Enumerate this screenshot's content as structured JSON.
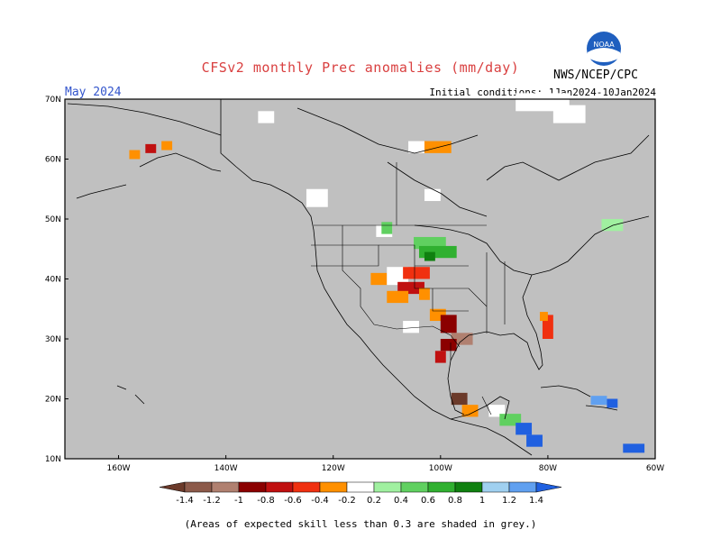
{
  "title": "CFSv2 monthly Prec anomalies (mm/day)",
  "month": "May 2024",
  "initial_conditions": "Initial conditions: 1Jan2024-10Jan2024",
  "org": "NWS/NCEP/CPC",
  "logo_text": "NOAA",
  "footnote": "(Areas of expected skill less than 0.3 are shaded in grey.)",
  "map": {
    "lon_range": [
      -170,
      -60
    ],
    "lat_range": [
      10,
      70
    ],
    "lon_ticks": [
      "160W",
      "140W",
      "120W",
      "100W",
      "80W",
      "60W"
    ],
    "lat_ticks": [
      "70N",
      "60N",
      "50N",
      "40N",
      "30N",
      "20N",
      "10N"
    ],
    "grey_color": "#c0c0c0"
  },
  "colorbar": {
    "labels": [
      "-1.4",
      "-1.2",
      "-1",
      "-0.8",
      "-0.6",
      "-0.4",
      "-0.2",
      "0.2",
      "0.4",
      "0.6",
      "0.8",
      "1",
      "1.2",
      "1.4"
    ],
    "colors": [
      "#6b3a2a",
      "#8c5a4a",
      "#b08070",
      "#8b0000",
      "#c01010",
      "#f03010",
      "#ff9000",
      "#ffffff",
      "#a0f0a0",
      "#60d060",
      "#30b030",
      "#108010",
      "#a0d0f0",
      "#60a0f0",
      "#2060e0"
    ]
  },
  "anomalies": [
    {
      "lon": -125,
      "lat": 52,
      "w": 4,
      "h": 3,
      "color": "#ffffff"
    },
    {
      "lon": -104,
      "lat": 61,
      "w": 6,
      "h": 2,
      "color": "#ff9000"
    },
    {
      "lon": -106,
      "lat": 61,
      "w": 3,
      "h": 2,
      "color": "#ffffff"
    },
    {
      "lon": -103,
      "lat": 53,
      "w": 3,
      "h": 2,
      "color": "#ffffff"
    },
    {
      "lon": -158,
      "lat": 60,
      "w": 2,
      "h": 1.5,
      "color": "#ff9000"
    },
    {
      "lon": -155,
      "lat": 61,
      "w": 2,
      "h": 1.5,
      "color": "#c01010"
    },
    {
      "lon": -152,
      "lat": 61.5,
      "w": 2,
      "h": 1.5,
      "color": "#ff9000"
    },
    {
      "lon": -134,
      "lat": 66,
      "w": 3,
      "h": 2,
      "color": "#ffffff"
    },
    {
      "lon": -86,
      "lat": 68,
      "w": 10,
      "h": 3,
      "color": "#ffffff"
    },
    {
      "lon": -79,
      "lat": 66,
      "w": 6,
      "h": 3,
      "color": "#ffffff"
    },
    {
      "lon": -112,
      "lat": 47,
      "w": 3,
      "h": 2,
      "color": "#ffffff"
    },
    {
      "lon": -111,
      "lat": 47.5,
      "w": 2,
      "h": 2,
      "color": "#60d060"
    },
    {
      "lon": -105,
      "lat": 45,
      "w": 6,
      "h": 2,
      "color": "#60d060"
    },
    {
      "lon": -104,
      "lat": 43.5,
      "w": 7,
      "h": 2,
      "color": "#30b030"
    },
    {
      "lon": -103,
      "lat": 43,
      "w": 2,
      "h": 1.5,
      "color": "#108010"
    },
    {
      "lon": -113,
      "lat": 39,
      "w": 3,
      "h": 2,
      "color": "#ff9000"
    },
    {
      "lon": -110,
      "lat": 39,
      "w": 4,
      "h": 3,
      "color": "#ffffff"
    },
    {
      "lon": -107,
      "lat": 40,
      "w": 5,
      "h": 2,
      "color": "#f03010"
    },
    {
      "lon": -108,
      "lat": 37.5,
      "w": 5,
      "h": 2,
      "color": "#c01010"
    },
    {
      "lon": -110,
      "lat": 36,
      "w": 4,
      "h": 2,
      "color": "#ff9000"
    },
    {
      "lon": -104,
      "lat": 36.5,
      "w": 2,
      "h": 2,
      "color": "#ff9000"
    },
    {
      "lon": -102,
      "lat": 33,
      "w": 3,
      "h": 2,
      "color": "#ff9000"
    },
    {
      "lon": -100,
      "lat": 31,
      "w": 3,
      "h": 3,
      "color": "#8b0000"
    },
    {
      "lon": -98,
      "lat": 29,
      "w": 4,
      "h": 2,
      "color": "#b08070"
    },
    {
      "lon": -100,
      "lat": 28,
      "w": 3,
      "h": 2,
      "color": "#8b0000"
    },
    {
      "lon": -101,
      "lat": 26,
      "w": 2,
      "h": 2,
      "color": "#c01010"
    },
    {
      "lon": -107,
      "lat": 31,
      "w": 3,
      "h": 2,
      "color": "#ffffff"
    },
    {
      "lon": -98,
      "lat": 19,
      "w": 3,
      "h": 2,
      "color": "#6b3a2a"
    },
    {
      "lon": -96,
      "lat": 17,
      "w": 3,
      "h": 2,
      "color": "#ff9000"
    },
    {
      "lon": -91,
      "lat": 17,
      "w": 3,
      "h": 2,
      "color": "#ffffff"
    },
    {
      "lon": -89,
      "lat": 15.5,
      "w": 4,
      "h": 2,
      "color": "#60d060"
    },
    {
      "lon": -86,
      "lat": 14,
      "w": 3,
      "h": 2,
      "color": "#2060e0"
    },
    {
      "lon": -84,
      "lat": 12,
      "w": 3,
      "h": 2,
      "color": "#2060e0"
    },
    {
      "lon": -81,
      "lat": 30,
      "w": 2,
      "h": 4,
      "color": "#f03010"
    },
    {
      "lon": -81.5,
      "lat": 33,
      "w": 1.5,
      "h": 1.5,
      "color": "#ff9000"
    },
    {
      "lon": -70,
      "lat": 48,
      "w": 4,
      "h": 2,
      "color": "#a0f0a0"
    },
    {
      "lon": -72,
      "lat": 19,
      "w": 3,
      "h": 1.5,
      "color": "#60a0f0"
    },
    {
      "lon": -69,
      "lat": 18.5,
      "w": 2,
      "h": 1.5,
      "color": "#2060e0"
    },
    {
      "lon": -66,
      "lat": 11,
      "w": 4,
      "h": 1.5,
      "color": "#2060e0"
    }
  ]
}
